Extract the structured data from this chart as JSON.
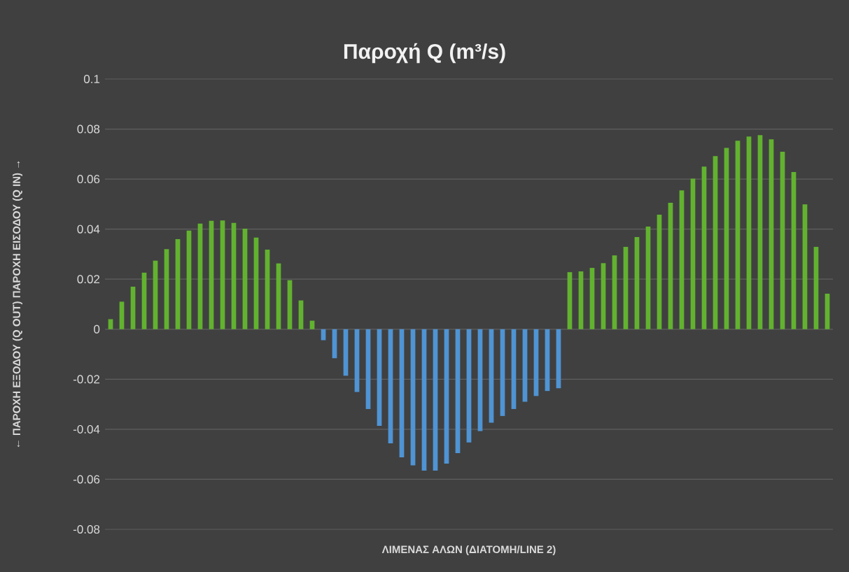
{
  "chart_data": {
    "type": "bar",
    "title": "Παροχή Q (m³/s)",
    "xlabel": "ΛΙΜΕΝΑΣ ΑΛΩΝ (ΔΙΑΤΟΜΗ/LINE 2)",
    "ylabel": "← ΠΑΡΟΧΗ ΕΞΟΔΟΥ (Q OUT)          ΠΑΡΟΧΗ ΕΙΣΟΔΟΥ (Q IN) →",
    "categories": [
      null,
      null,
      null,
      null,
      null,
      null,
      null,
      null,
      null,
      null,
      null,
      null,
      null,
      null,
      null,
      null,
      null,
      null,
      null,
      null,
      null,
      null,
      null,
      null,
      null,
      null,
      null,
      null,
      null,
      null,
      null,
      null,
      null,
      null,
      null,
      null,
      null,
      null,
      null,
      null,
      null,
      null,
      null,
      null,
      null,
      null,
      null,
      null,
      null,
      null,
      null,
      null,
      null,
      null,
      null,
      null,
      null,
      null,
      null,
      null,
      null,
      null,
      null,
      null,
      null
    ],
    "values": [
      0.004,
      0.011,
      0.017,
      0.0226,
      0.0274,
      0.032,
      0.036,
      0.0394,
      0.0422,
      0.0433,
      0.0435,
      0.0425,
      0.0402,
      0.0366,
      0.0318,
      0.0263,
      0.0196,
      0.0115,
      0.0034,
      -0.0044,
      -0.0116,
      -0.0186,
      -0.0251,
      -0.0319,
      -0.0386,
      -0.0456,
      -0.0512,
      -0.0544,
      -0.0565,
      -0.0565,
      -0.0537,
      -0.0495,
      -0.0453,
      -0.0407,
      -0.0374,
      -0.0347,
      -0.0319,
      -0.029,
      -0.0267,
      -0.0247,
      -0.0236,
      0.0228,
      0.0231,
      0.0245,
      0.0264,
      0.0295,
      0.0329,
      0.0368,
      0.041,
      0.0458,
      0.0505,
      0.0555,
      0.0602,
      0.065,
      0.0692,
      0.0725,
      0.0753,
      0.077,
      0.0776,
      0.0759,
      0.0709,
      0.0628,
      0.0499,
      0.0329,
      0.0142
    ],
    "colors": [
      "#62b22f",
      "#62b22f",
      "#62b22f",
      "#62b22f",
      "#62b22f",
      "#62b22f",
      "#62b22f",
      "#62b22f",
      "#62b22f",
      "#62b22f",
      "#62b22f",
      "#62b22f",
      "#62b22f",
      "#62b22f",
      "#62b22f",
      "#62b22f",
      "#62b22f",
      "#62b22f",
      "#62b22f",
      "#4f94d4",
      "#4f94d4",
      "#4f94d4",
      "#4f94d4",
      "#4f94d4",
      "#4f94d4",
      "#4f94d4",
      "#4f94d4",
      "#4f94d4",
      "#4f94d4",
      "#4f94d4",
      "#4f94d4",
      "#4f94d4",
      "#4f94d4",
      "#4f94d4",
      "#4f94d4",
      "#4f94d4",
      "#4f94d4",
      "#4f94d4",
      "#4f94d4",
      "#4f94d4",
      "#4f94d4",
      "#62b22f",
      "#62b22f",
      "#62b22f",
      "#62b22f",
      "#62b22f",
      "#62b22f",
      "#62b22f",
      "#62b22f",
      "#62b22f",
      "#62b22f",
      "#62b22f",
      "#62b22f",
      "#62b22f",
      "#62b22f",
      "#62b22f",
      "#62b22f",
      "#62b22f",
      "#62b22f",
      "#62b22f",
      "#62b22f",
      "#62b22f",
      "#62b22f",
      "#62b22f",
      "#62b22f"
    ],
    "ylim": [
      -0.08,
      0.1
    ],
    "yticks": [
      -0.08,
      -0.06,
      -0.04,
      -0.02,
      0,
      0.02,
      0.04,
      0.06,
      0.08,
      0.1
    ],
    "grid": "y"
  }
}
